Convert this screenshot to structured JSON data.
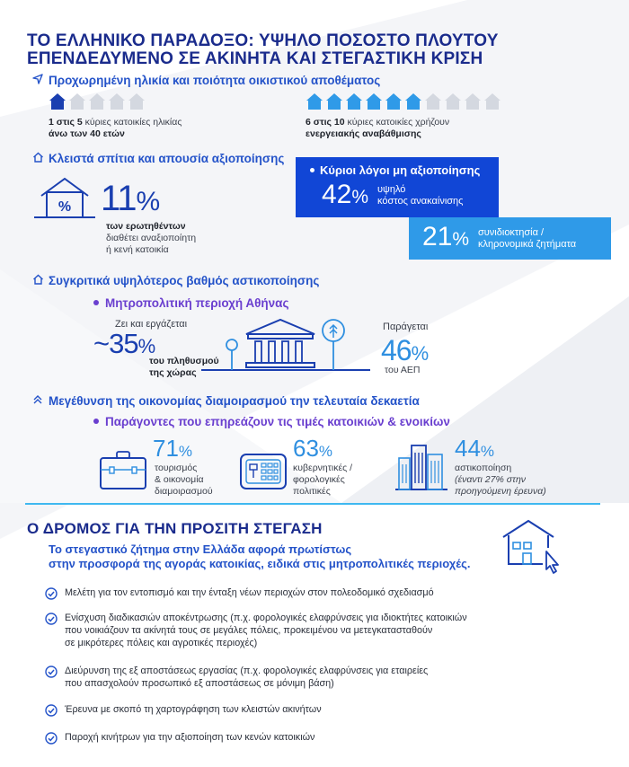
{
  "colors": {
    "navy": "#1a2b8c",
    "blue": "#1565d8",
    "light_blue": "#2f9ae8",
    "violet": "#6a3fcf",
    "divider": "#3fb8f0"
  },
  "header": {
    "title_line1": "ΤΟ ΕΛΛΗΝΙΚΟ ΠΑΡΑΔΟΞΟ: ΥΨΗΛΟ ΠΟΣΟΣΤΟ ΠΛΟΥΤΟΥ",
    "title_line2": "ΕΠΕΝΔΕΔΥΜΕΝΟ ΣΕ ΑΚΙΝΗΤΑ ΚΑΙ ΣΤΕΓΑΣΤΙΚΗ ΚΡΙΣΗ"
  },
  "section_age": {
    "icon": "paper-plane-icon",
    "heading": "Προχωρημένη ηλικία και ποιότητα οικιστικού αποθέματος",
    "stat1": {
      "filled": 1,
      "total": 5,
      "bold_lead": "1 στις 5",
      "text": " κύριες κατοικίες ηλικίας",
      "bold_tail": "άνω των 40 ετών"
    },
    "stat2": {
      "filled": 6,
      "total": 10,
      "bold_lead": "6 στις 10",
      "text": " κύριες κατοικίες χρήζουν",
      "bold_tail": "ενεργειακής αναβάθμισης"
    }
  },
  "section_closed": {
    "icon": "house-outline-icon",
    "heading": "Κλειστά σπίτια και απουσία αξιοποίησης",
    "main_value": "11",
    "main_unit": "%",
    "main_line1": "των ερωτηθέντων",
    "main_line2": "διαθέτει αναξιοποίητη",
    "main_line3": "ή κενή κατοικία",
    "reasons_title": "Κύριοι λόγοι μη αξιοποίησης",
    "reason1_value": "42",
    "reason1_unit": "%",
    "reason1_line1": "υψηλό",
    "reason1_line2": "κόστος ανακαίνισης",
    "reason2_value": "21",
    "reason2_unit": "%",
    "reason2_line1": "συνιδιοκτησία /",
    "reason2_line2": "κληρονομικά ζητήματα"
  },
  "section_urban": {
    "icon": "house-up-icon",
    "heading": "Συγκριτικά υψηλότερος βαθμός αστικοποίησης",
    "subheading": "Μητροπολιτική περιοχή Αθήνας",
    "left_top": "Ζει και εργάζεται",
    "left_value": "~35",
    "left_unit": "%",
    "left_line1": "του πληθυσμού",
    "left_line2": "της χώρας",
    "right_top": "Παράγεται",
    "right_value": "46",
    "right_unit": "%",
    "right_line1": "του ΑΕΠ"
  },
  "section_sharing": {
    "icon": "double-chevron-up-icon",
    "heading": "Μεγέθυνση της οικονομίας διαμοιρασμού την τελευταία δεκαετία",
    "subheading": "Παράγοντες που επηρεάζουν τις τιμές κατοικιών & ενοικίων",
    "f1_value": "71",
    "f1_unit": "%",
    "f1_line1": "τουρισμός",
    "f1_line2": "& οικονομία",
    "f1_line3": "διαμοιρασμού",
    "f2_value": "63",
    "f2_unit": "%",
    "f2_line1": "κυβερνητικές /",
    "f2_line2": "φορολογικές",
    "f2_line3": "πολιτικές",
    "f3_value": "44",
    "f3_unit": "%",
    "f3_line1": "αστικοποίηση",
    "f3_line2": "(έναντι 27% στην",
    "f3_line3": "προηγούμενη έρευνα)"
  },
  "section_road": {
    "title": "Ο ΔΡΟΜΟΣ ΓΙΑ ΤΗΝ ΠΡΟΣΙΤΗ ΣΤΕΓΑΣΗ",
    "intro_line1": "Το στεγαστικό ζήτημα στην Ελλάδα αφορά πρωτίστως",
    "intro_line2": "στην προσφορά της αγοράς κατοικίας, ειδικά στις μητροπολιτικές περιοχές.",
    "items": [
      {
        "lines": [
          "Μελέτη για τον εντοπισμό και την ένταξη νέων περιοχών στον πολεοδομικό σχεδιασμό"
        ]
      },
      {
        "lines": [
          "Ενίσχυση  διαδικασιών αποκέντρωσης (π.χ. φορολογικές ελαφρύνσεις για ιδιοκτήτες κατοικιών",
          "που νοικιάζουν τα ακίνητά τους σε μεγάλες πόλεις, προκειμένου να μετεγκατασταθούν",
          "σε μικρότερες πόλεις και αγροτικές περιοχές)"
        ]
      },
      {
        "lines": [
          "Διεύρυνση της εξ αποστάσεως εργασίας (π.χ. φορολογικές ελαφρύνσεις για εταιρείες",
          "που απασχολούν προσωπικό εξ αποστάσεως σε μόνιμη βάση)"
        ]
      },
      {
        "lines": [
          "Έρευνα με σκοπό τη χαρτογράφηση των κλειστών ακινήτων"
        ]
      },
      {
        "lines": [
          "Παροχή κινήτρων για την αξιοποίηση των κενών κατοικιών"
        ]
      }
    ]
  }
}
